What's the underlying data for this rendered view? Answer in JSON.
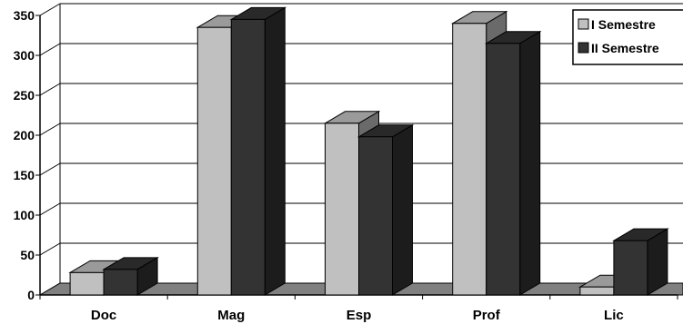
{
  "chart_data": {
    "type": "bar",
    "title": "",
    "xlabel": "",
    "ylabel": "",
    "categories": [
      "Doc",
      "Mag",
      "Esp",
      "Prof",
      "Lic"
    ],
    "series": [
      {
        "name": "I Semestre",
        "values": [
          28,
          335,
          215,
          340,
          10
        ],
        "color": "#c0c0c0"
      },
      {
        "name": "II Semestre",
        "values": [
          32,
          345,
          198,
          315,
          68
        ],
        "color": "#333333"
      }
    ],
    "ylim": [
      0,
      350
    ],
    "yticks": [
      0,
      50,
      100,
      150,
      200,
      250,
      300,
      350
    ],
    "grid": true,
    "legend_position": "top-right",
    "style": "3d-column"
  }
}
